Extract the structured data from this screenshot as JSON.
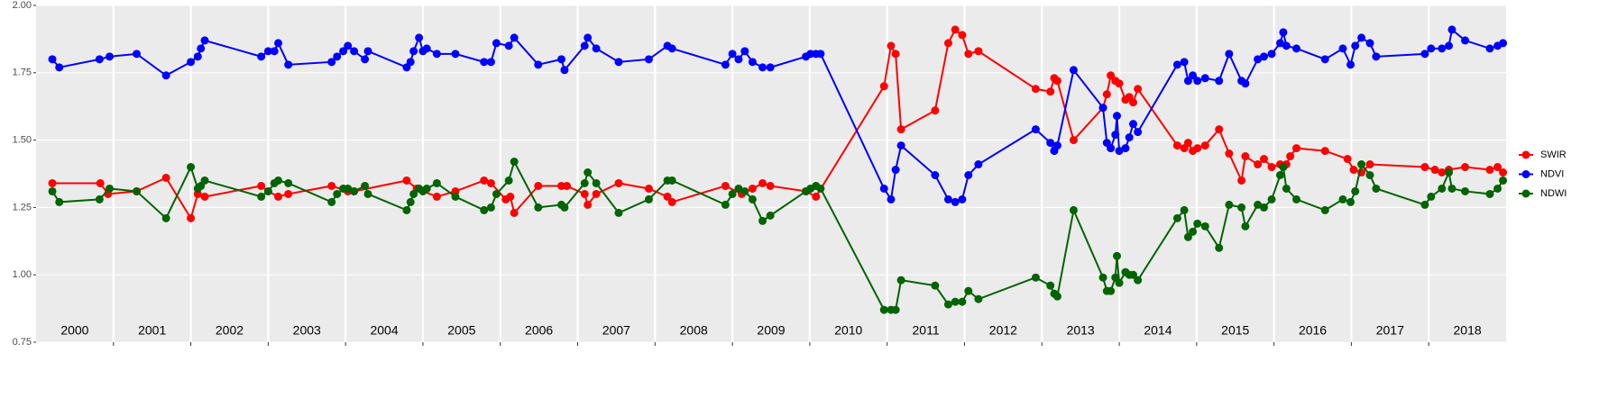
{
  "chart_data": {
    "type": "line",
    "xlim": [
      2000,
      2019
    ],
    "xticks": [
      2001,
      2002,
      2003,
      2004,
      2005,
      2006,
      2007,
      2008,
      2009,
      2010,
      2011,
      2012,
      2013,
      2014,
      2015,
      2016,
      2017,
      2018
    ],
    "ylim": [
      0.75,
      2.0
    ],
    "yticks": [
      {
        "value": 0.75,
        "label": "0.75"
      },
      {
        "value": 1.0,
        "label": "1.00"
      },
      {
        "value": 1.25,
        "label": "1.25"
      },
      {
        "value": 1.5,
        "label": "1.50"
      },
      {
        "value": 1.75,
        "label": "1.75"
      },
      {
        "value": 2.0,
        "label": "2.00"
      }
    ],
    "grid": true,
    "legend": "right",
    "annotations": [
      {
        "text": "2000",
        "x": 2000.5,
        "y": 0.79
      },
      {
        "text": "2001",
        "x": 2001.5,
        "y": 0.79
      },
      {
        "text": "2002",
        "x": 2002.5,
        "y": 0.79
      },
      {
        "text": "2003",
        "x": 2003.5,
        "y": 0.79
      },
      {
        "text": "2004",
        "x": 2004.5,
        "y": 0.79
      },
      {
        "text": "2005",
        "x": 2005.5,
        "y": 0.79
      },
      {
        "text": "2006",
        "x": 2006.5,
        "y": 0.79
      },
      {
        "text": "2007",
        "x": 2007.5,
        "y": 0.79
      },
      {
        "text": "2008",
        "x": 2008.5,
        "y": 0.79
      },
      {
        "text": "2009",
        "x": 2009.5,
        "y": 0.79
      },
      {
        "text": "2010",
        "x": 2010.5,
        "y": 0.79
      },
      {
        "text": "2011",
        "x": 2011.5,
        "y": 0.79
      },
      {
        "text": "2012",
        "x": 2012.5,
        "y": 0.79
      },
      {
        "text": "2013",
        "x": 2013.5,
        "y": 0.79
      },
      {
        "text": "2014",
        "x": 2014.5,
        "y": 0.79
      },
      {
        "text": "2015",
        "x": 2015.5,
        "y": 0.79
      },
      {
        "text": "2016",
        "x": 2016.5,
        "y": 0.79
      },
      {
        "text": "2017",
        "x": 2017.5,
        "y": 0.79
      },
      {
        "text": "2018",
        "x": 2018.5,
        "y": 0.79
      }
    ],
    "series": [
      {
        "name": "SWIR",
        "color": "#ff0000",
        "x": [
          2000.21,
          2000.83,
          2000.93,
          2001.3,
          2001.68,
          2002.0,
          2002.09,
          2002.18,
          2002.91,
          2003.0,
          2003.13,
          2003.26,
          2003.82,
          2004.03,
          2004.11,
          2004.79,
          2004.92,
          2005.18,
          2005.42,
          2005.79,
          2005.88,
          2006.07,
          2006.13,
          2006.18,
          2006.49,
          2006.79,
          2006.86,
          2007.09,
          2007.13,
          2007.24,
          2007.53,
          2007.92,
          2008.16,
          2008.22,
          2008.91,
          2009.12,
          2009.26,
          2009.39,
          2009.49,
          2009.95,
          2010.08,
          2010.96,
          2011.05,
          2011.11,
          2011.18,
          2011.62,
          2011.79,
          2011.88,
          2011.97,
          2012.05,
          2012.18,
          2012.92,
          2013.11,
          2013.16,
          2013.2,
          2013.41,
          2013.79,
          2013.84,
          2013.89,
          2013.95,
          2014.0,
          2014.08,
          2014.13,
          2014.18,
          2014.24,
          2014.75,
          2014.84,
          2014.89,
          2014.95,
          2015.01,
          2015.11,
          2015.29,
          2015.42,
          2015.58,
          2015.63,
          2015.79,
          2015.87,
          2015.97,
          2016.08,
          2016.16,
          2016.21,
          2016.29,
          2016.66,
          2016.95,
          2017.03,
          2017.13,
          2017.24,
          2017.95,
          2018.08,
          2018.17,
          2018.26,
          2018.47,
          2018.79,
          2018.89,
          2018.96
        ],
        "values": [
          1.34,
          1.34,
          1.3,
          1.31,
          1.36,
          1.21,
          1.3,
          1.29,
          1.33,
          1.31,
          1.29,
          1.3,
          1.33,
          1.31,
          1.31,
          1.35,
          1.32,
          1.29,
          1.31,
          1.35,
          1.34,
          1.28,
          1.29,
          1.23,
          1.33,
          1.33,
          1.33,
          1.3,
          1.26,
          1.3,
          1.34,
          1.32,
          1.29,
          1.27,
          1.33,
          1.3,
          1.32,
          1.34,
          1.33,
          1.31,
          1.29,
          1.7,
          1.85,
          1.82,
          1.54,
          1.61,
          1.86,
          1.91,
          1.89,
          1.82,
          1.83,
          1.69,
          1.68,
          1.73,
          1.72,
          1.5,
          1.62,
          1.67,
          1.74,
          1.72,
          1.71,
          1.65,
          1.66,
          1.64,
          1.69,
          1.48,
          1.47,
          1.49,
          1.46,
          1.47,
          1.48,
          1.54,
          1.45,
          1.35,
          1.44,
          1.41,
          1.43,
          1.4,
          1.41,
          1.41,
          1.44,
          1.47,
          1.46,
          1.43,
          1.39,
          1.38,
          1.41,
          1.4,
          1.39,
          1.38,
          1.39,
          1.4,
          1.39,
          1.4,
          1.38
        ]
      },
      {
        "name": "NDVI",
        "color": "#0000ff",
        "x": [
          2000.21,
          2000.3,
          2000.82,
          2000.95,
          2001.3,
          2001.68,
          2002.0,
          2002.09,
          2002.13,
          2002.18,
          2002.91,
          2003.0,
          2003.08,
          2003.13,
          2003.26,
          2003.82,
          2003.89,
          2003.97,
          2004.03,
          2004.11,
          2004.25,
          2004.29,
          2004.79,
          2004.84,
          2004.88,
          2004.95,
          2005.0,
          2005.05,
          2005.18,
          2005.42,
          2005.79,
          2005.88,
          2005.95,
          2006.11,
          2006.18,
          2006.49,
          2006.79,
          2006.83,
          2007.09,
          2007.13,
          2007.24,
          2007.53,
          2007.92,
          2008.16,
          2008.22,
          2008.91,
          2009.0,
          2009.08,
          2009.16,
          2009.26,
          2009.39,
          2009.49,
          2009.95,
          2010.01,
          2010.08,
          2010.14,
          2010.96,
          2011.05,
          2011.11,
          2011.18,
          2011.62,
          2011.79,
          2011.88,
          2011.97,
          2012.05,
          2012.18,
          2012.92,
          2013.11,
          2013.16,
          2013.2,
          2013.41,
          2013.79,
          2013.84,
          2013.89,
          2013.95,
          2013.97,
          2014.0,
          2014.08,
          2014.13,
          2014.18,
          2014.24,
          2014.75,
          2014.84,
          2014.89,
          2014.95,
          2015.01,
          2015.11,
          2015.29,
          2015.42,
          2015.58,
          2015.63,
          2015.79,
          2015.87,
          2015.97,
          2016.08,
          2016.12,
          2016.16,
          2016.29,
          2016.66,
          2016.89,
          2016.99,
          2017.05,
          2017.13,
          2017.24,
          2017.32,
          2017.95,
          2018.03,
          2018.17,
          2018.26,
          2018.3,
          2018.47,
          2018.79,
          2018.89,
          2018.96
        ],
        "values": [
          1.8,
          1.77,
          1.8,
          1.81,
          1.82,
          1.74,
          1.79,
          1.81,
          1.84,
          1.87,
          1.81,
          1.83,
          1.83,
          1.86,
          1.78,
          1.79,
          1.81,
          1.83,
          1.85,
          1.83,
          1.8,
          1.83,
          1.77,
          1.79,
          1.83,
          1.88,
          1.83,
          1.84,
          1.82,
          1.82,
          1.79,
          1.79,
          1.86,
          1.85,
          1.88,
          1.78,
          1.8,
          1.76,
          1.85,
          1.88,
          1.84,
          1.79,
          1.8,
          1.85,
          1.84,
          1.78,
          1.82,
          1.8,
          1.83,
          1.79,
          1.77,
          1.77,
          1.81,
          1.82,
          1.82,
          1.82,
          1.32,
          1.28,
          1.39,
          1.48,
          1.37,
          1.28,
          1.27,
          1.28,
          1.37,
          1.41,
          1.54,
          1.49,
          1.46,
          1.48,
          1.76,
          1.62,
          1.49,
          1.47,
          1.52,
          1.59,
          1.46,
          1.47,
          1.51,
          1.56,
          1.53,
          1.78,
          1.79,
          1.72,
          1.74,
          1.72,
          1.73,
          1.72,
          1.82,
          1.72,
          1.71,
          1.8,
          1.81,
          1.82,
          1.86,
          1.9,
          1.85,
          1.84,
          1.8,
          1.84,
          1.78,
          1.85,
          1.88,
          1.86,
          1.81,
          1.82,
          1.84,
          1.84,
          1.85,
          1.91,
          1.87,
          1.84,
          1.85,
          1.86
        ]
      },
      {
        "name": "NDWI",
        "color": "#006400",
        "x": [
          2000.21,
          2000.3,
          2000.82,
          2000.95,
          2001.3,
          2001.68,
          2002.0,
          2002.09,
          2002.13,
          2002.18,
          2002.91,
          2003.0,
          2003.08,
          2003.13,
          2003.26,
          2003.82,
          2003.89,
          2003.97,
          2004.03,
          2004.11,
          2004.25,
          2004.29,
          2004.79,
          2004.84,
          2004.88,
          2004.95,
          2005.0,
          2005.05,
          2005.18,
          2005.42,
          2005.79,
          2005.88,
          2005.95,
          2006.11,
          2006.18,
          2006.49,
          2006.79,
          2006.83,
          2007.09,
          2007.13,
          2007.24,
          2007.53,
          2007.92,
          2008.16,
          2008.22,
          2008.91,
          2009.0,
          2009.08,
          2009.16,
          2009.26,
          2009.39,
          2009.49,
          2009.95,
          2010.01,
          2010.08,
          2010.14,
          2010.96,
          2011.05,
          2011.11,
          2011.18,
          2011.62,
          2011.79,
          2011.88,
          2011.97,
          2012.05,
          2012.18,
          2012.92,
          2013.11,
          2013.16,
          2013.2,
          2013.41,
          2013.79,
          2013.84,
          2013.89,
          2013.95,
          2013.97,
          2014.0,
          2014.08,
          2014.13,
          2014.18,
          2014.24,
          2014.75,
          2014.84,
          2014.89,
          2014.95,
          2015.01,
          2015.11,
          2015.29,
          2015.42,
          2015.58,
          2015.63,
          2015.79,
          2015.87,
          2015.97,
          2016.08,
          2016.12,
          2016.16,
          2016.29,
          2016.66,
          2016.89,
          2016.99,
          2017.05,
          2017.13,
          2017.24,
          2017.32,
          2017.95,
          2018.03,
          2018.17,
          2018.26,
          2018.3,
          2018.47,
          2018.79,
          2018.89,
          2018.96
        ],
        "values": [
          1.31,
          1.27,
          1.28,
          1.32,
          1.31,
          1.21,
          1.4,
          1.32,
          1.33,
          1.35,
          1.29,
          1.31,
          1.34,
          1.35,
          1.34,
          1.27,
          1.3,
          1.32,
          1.32,
          1.31,
          1.33,
          1.3,
          1.24,
          1.27,
          1.3,
          1.32,
          1.31,
          1.32,
          1.34,
          1.29,
          1.24,
          1.25,
          1.3,
          1.35,
          1.42,
          1.25,
          1.26,
          1.25,
          1.34,
          1.38,
          1.34,
          1.23,
          1.28,
          1.35,
          1.35,
          1.26,
          1.3,
          1.32,
          1.31,
          1.28,
          1.2,
          1.22,
          1.31,
          1.32,
          1.33,
          1.32,
          0.87,
          0.87,
          0.87,
          0.98,
          0.96,
          0.89,
          0.9,
          0.9,
          0.94,
          0.91,
          0.99,
          0.96,
          0.93,
          0.92,
          1.24,
          0.99,
          0.94,
          0.94,
          0.99,
          1.07,
          0.97,
          1.01,
          1.0,
          1.0,
          0.98,
          1.21,
          1.24,
          1.14,
          1.16,
          1.19,
          1.18,
          1.1,
          1.26,
          1.25,
          1.18,
          1.26,
          1.25,
          1.28,
          1.37,
          1.4,
          1.32,
          1.28,
          1.24,
          1.28,
          1.27,
          1.31,
          1.41,
          1.37,
          1.32,
          1.26,
          1.29,
          1.32,
          1.38,
          1.32,
          1.31,
          1.3,
          1.32,
          1.35
        ]
      }
    ]
  }
}
